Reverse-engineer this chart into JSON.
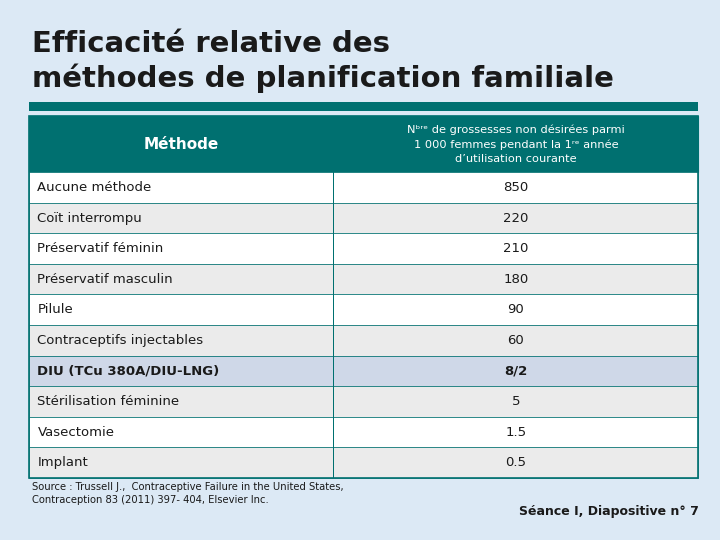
{
  "title_line1": "Efficacité relative des",
  "title_line2": "méthodes de planification familiale",
  "title_fontsize": 22,
  "background_color": "#dce9f5",
  "teal_bar_color": "#007070",
  "header_bg": "#007070",
  "header_text_color": "#ffffff",
  "col1_header": "Méthode",
  "col2_header": "Nᵇʳᵉ de grossesses non désirées parmi\n1 000 femmes pendant la 1ʳᵉ année\nd’utilisation courante",
  "rows": [
    {
      "method": "Aucune méthode",
      "value": "850",
      "bold": false,
      "highlight": false
    },
    {
      "method": "Coït interrompu",
      "value": "220",
      "bold": false,
      "highlight": false
    },
    {
      "method": "Préservatif féminin",
      "value": "210",
      "bold": false,
      "highlight": false
    },
    {
      "method": "Préservatif masculin",
      "value": "180",
      "bold": false,
      "highlight": false
    },
    {
      "method": "Pilule",
      "value": "90",
      "bold": false,
      "highlight": false
    },
    {
      "method": "Contraceptifs injectables",
      "value": "60",
      "bold": false,
      "highlight": false
    },
    {
      "method": "DIU (TCu 380A/DIU-LNG)",
      "value": "8/2",
      "bold": true,
      "highlight": true
    },
    {
      "method": "Stérilisation féminine",
      "value": "5",
      "bold": false,
      "highlight": false
    },
    {
      "method": "Vasectomie",
      "value": "1.5",
      "bold": false,
      "highlight": false
    },
    {
      "method": "Implant",
      "value": "0.5",
      "bold": false,
      "highlight": false
    }
  ],
  "source_text": "Source : Trussell J.,  Contraceptive Failure in the United States,\nContraception 83 (2011) 397- 404, Elsevier Inc.",
  "footer_text": "Séance I, Diapositive n° 7",
  "row_odd_color": "#ffffff",
  "row_even_color": "#f0f0f0",
  "row_highlight_color": "#cfd8e8",
  "border_color": "#007070",
  "text_color": "#000000",
  "teal_stripe_color": "#007070"
}
